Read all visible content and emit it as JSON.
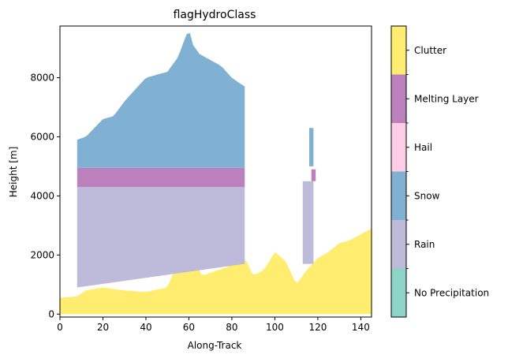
{
  "chart_data": {
    "type": "heatmap",
    "title": "flagHydroClass",
    "xlabel": "Along-Track",
    "ylabel": "Height [m]",
    "xlim": [
      0,
      145
    ],
    "ylim": [
      -100,
      9750
    ],
    "x_ticks": [
      0,
      20,
      40,
      60,
      80,
      100,
      120,
      140
    ],
    "x_tick_labels": [
      "0",
      "20",
      "40",
      "60",
      "80",
      "100",
      "120",
      "140"
    ],
    "y_ticks": [
      0,
      2000,
      4000,
      6000,
      8000
    ],
    "y_tick_labels": [
      "0",
      "2000",
      "4000",
      "6000",
      "8000"
    ],
    "colorbar": {
      "classes": [
        {
          "label": "No Precipitation",
          "color": "#8dd3c7"
        },
        {
          "label": "Rain",
          "color": "#bebada"
        },
        {
          "label": "Snow",
          "color": "#80b1d3"
        },
        {
          "label": "Hail",
          "color": "#fccde5"
        },
        {
          "label": "Melting Layer",
          "color": "#bc80bd"
        },
        {
          "label": "Clutter",
          "color": "#ffed6f"
        }
      ]
    },
    "regions": [
      {
        "class": "Clutter",
        "x": [
          0,
          145
        ],
        "bottom": 0,
        "top_profile": [
          [
            0,
            550
          ],
          [
            8,
            600
          ],
          [
            12,
            800
          ],
          [
            20,
            900
          ],
          [
            30,
            800
          ],
          [
            40,
            750
          ],
          [
            50,
            900
          ],
          [
            55,
            1800
          ],
          [
            58,
            2800
          ],
          [
            60,
            3000
          ],
          [
            62,
            2000
          ],
          [
            66,
            1300
          ],
          [
            70,
            1400
          ],
          [
            78,
            1600
          ],
          [
            86,
            1900
          ],
          [
            90,
            1300
          ],
          [
            95,
            1500
          ],
          [
            100,
            2100
          ],
          [
            105,
            1800
          ],
          [
            110,
            1000
          ],
          [
            115,
            1500
          ],
          [
            120,
            1900
          ],
          [
            125,
            2100
          ],
          [
            130,
            2400
          ],
          [
            135,
            2500
          ],
          [
            140,
            2700
          ],
          [
            145,
            2900
          ]
        ]
      },
      {
        "class": "Rain",
        "x": [
          8,
          86
        ],
        "bottom_profile": [
          [
            8,
            900
          ],
          [
            86,
            1700
          ]
        ],
        "top": 4300
      },
      {
        "class": "Melting Layer",
        "x": [
          8,
          86
        ],
        "bottom": 4300,
        "top": 4950
      },
      {
        "class": "Snow",
        "x": [
          8,
          86
        ],
        "bottom": 4950,
        "top_profile": [
          [
            8,
            5900
          ],
          [
            12,
            6000
          ],
          [
            20,
            6600
          ],
          [
            25,
            6700
          ],
          [
            30,
            7200
          ],
          [
            35,
            7600
          ],
          [
            40,
            8000
          ],
          [
            45,
            8100
          ],
          [
            50,
            8200
          ],
          [
            55,
            8700
          ],
          [
            58,
            9300
          ],
          [
            60,
            9650
          ],
          [
            62,
            9100
          ],
          [
            65,
            8800
          ],
          [
            70,
            8600
          ],
          [
            75,
            8400
          ],
          [
            80,
            8000
          ],
          [
            86,
            7700
          ]
        ]
      },
      {
        "class": "Rain",
        "x": [
          113,
          118
        ],
        "bottom": 1700,
        "top": 4500
      },
      {
        "class": "Melting Layer",
        "x": [
          117,
          119
        ],
        "bottom": 4500,
        "top": 4900
      },
      {
        "class": "Snow",
        "x": [
          116,
          118
        ],
        "bottom": 5000,
        "top": 6300
      }
    ]
  }
}
